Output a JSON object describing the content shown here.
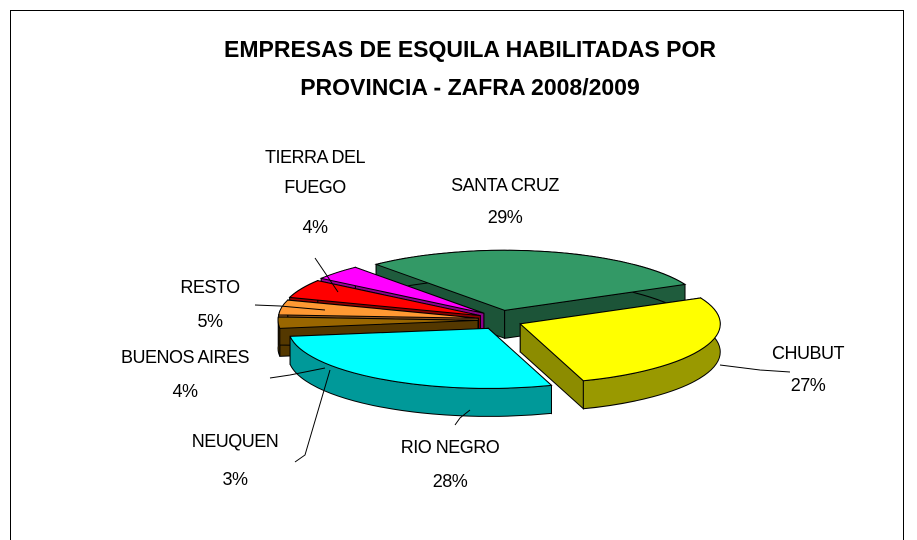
{
  "chart_data": {
    "type": "pie3d",
    "title": "EMPRESAS DE ESQUILA HABILITADAS POR PROVINCIA - ZAFRA 2008/2009",
    "categories": [
      "SANTA CRUZ",
      "CHUBUT",
      "RIO NEGRO",
      "NEUQUEN",
      "BUENOS AIRES",
      "RESTO",
      "TIERRA DEL FUEGO"
    ],
    "values": [
      29,
      27,
      28,
      3,
      4,
      5,
      4
    ],
    "value_labels": [
      "29%",
      "27%",
      "28%",
      "3%",
      "4%",
      "5%",
      "4%"
    ],
    "colors": [
      "#339966",
      "#ffff00",
      "#00ffff",
      "#996600",
      "#ff9933",
      "#ff0000",
      "#ff00ff"
    ]
  }
}
